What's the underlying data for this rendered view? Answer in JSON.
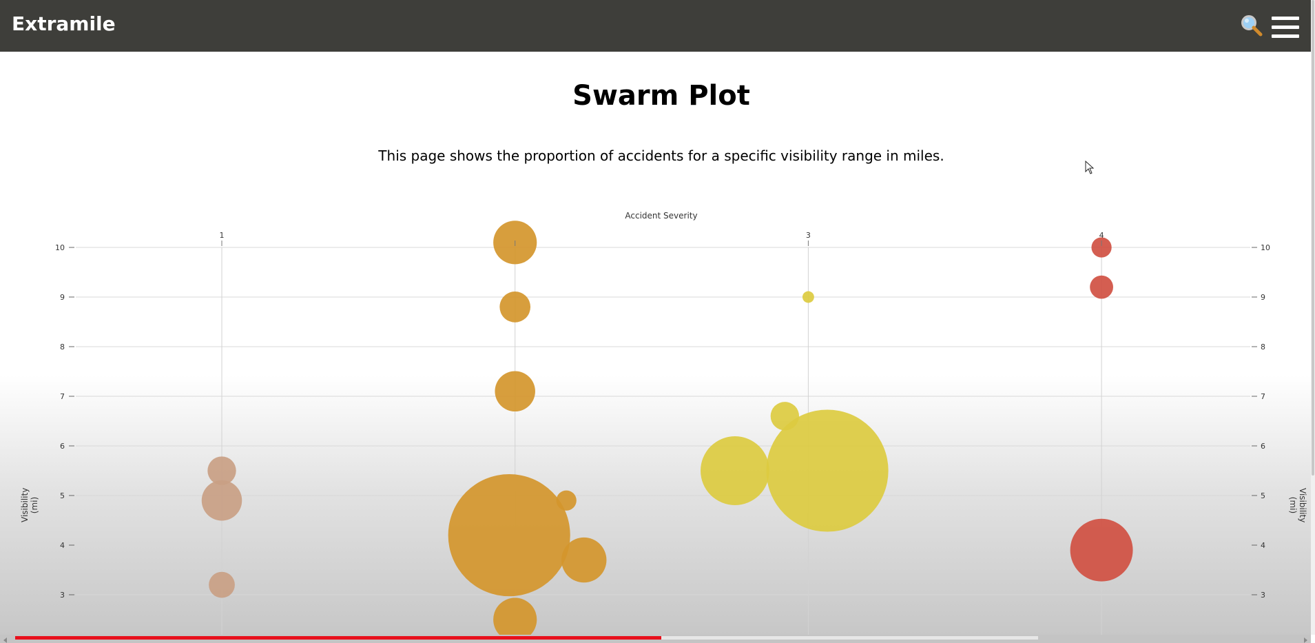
{
  "navbar": {
    "brand": "Extramile",
    "search_icon": "magnifier-icon",
    "menu_icon": "hamburger-icon"
  },
  "page": {
    "title": "Swarm Plot",
    "description": "This page shows the proportion of accidents for a specific visibility range in miles."
  },
  "chart_data": {
    "type": "scatter",
    "title": "",
    "xlabel": "Accident Severity",
    "ylabel": "Visibility (mi)",
    "x_ticks": [
      "1",
      "",
      "3",
      "4"
    ],
    "y_ticks": [
      3,
      4,
      5,
      6,
      7,
      8,
      9,
      10
    ],
    "ylim": [
      2.3,
      10.1
    ],
    "xlim": [
      0.4,
      4.5
    ],
    "grid": true,
    "colors": {
      "1": "#c9a084",
      "2": "#d4962c",
      "3": "#dccb40",
      "4": "#d05042"
    },
    "points": [
      {
        "severity": 1,
        "x": 1.0,
        "y": 5.5,
        "size": 0.6
      },
      {
        "severity": 1,
        "x": 1.0,
        "y": 4.9,
        "size": 1.2
      },
      {
        "severity": 1,
        "x": 1.0,
        "y": 3.2,
        "size": 0.5
      },
      {
        "severity": 2,
        "x": 2.0,
        "y": 10.1,
        "size": 1.4
      },
      {
        "severity": 2,
        "x": 2.0,
        "y": 8.8,
        "size": 0.7
      },
      {
        "severity": 2,
        "x": 2.0,
        "y": 7.1,
        "size": 1.2
      },
      {
        "severity": 2,
        "x": 1.98,
        "y": 4.2,
        "size": 11
      },
      {
        "severity": 2,
        "x": 2.175,
        "y": 4.9,
        "size": 0.3
      },
      {
        "severity": 2,
        "x": 2.235,
        "y": 3.7,
        "size": 1.5
      },
      {
        "severity": 2,
        "x": 2.0,
        "y": 2.5,
        "size": 1.4
      },
      {
        "severity": 3,
        "x": 3.0,
        "y": 9.0,
        "size": 0.1
      },
      {
        "severity": 3,
        "x": 2.92,
        "y": 6.6,
        "size": 0.6
      },
      {
        "severity": 3,
        "x": 2.75,
        "y": 5.5,
        "size": 3.5
      },
      {
        "severity": 3,
        "x": 3.065,
        "y": 5.5,
        "size": 11
      },
      {
        "severity": 4,
        "x": 4.0,
        "y": 10.0,
        "size": 0.3
      },
      {
        "severity": 4,
        "x": 4.0,
        "y": 9.2,
        "size": 0.4
      },
      {
        "severity": 4,
        "x": 4.0,
        "y": 3.9,
        "size": 2.9
      }
    ]
  }
}
